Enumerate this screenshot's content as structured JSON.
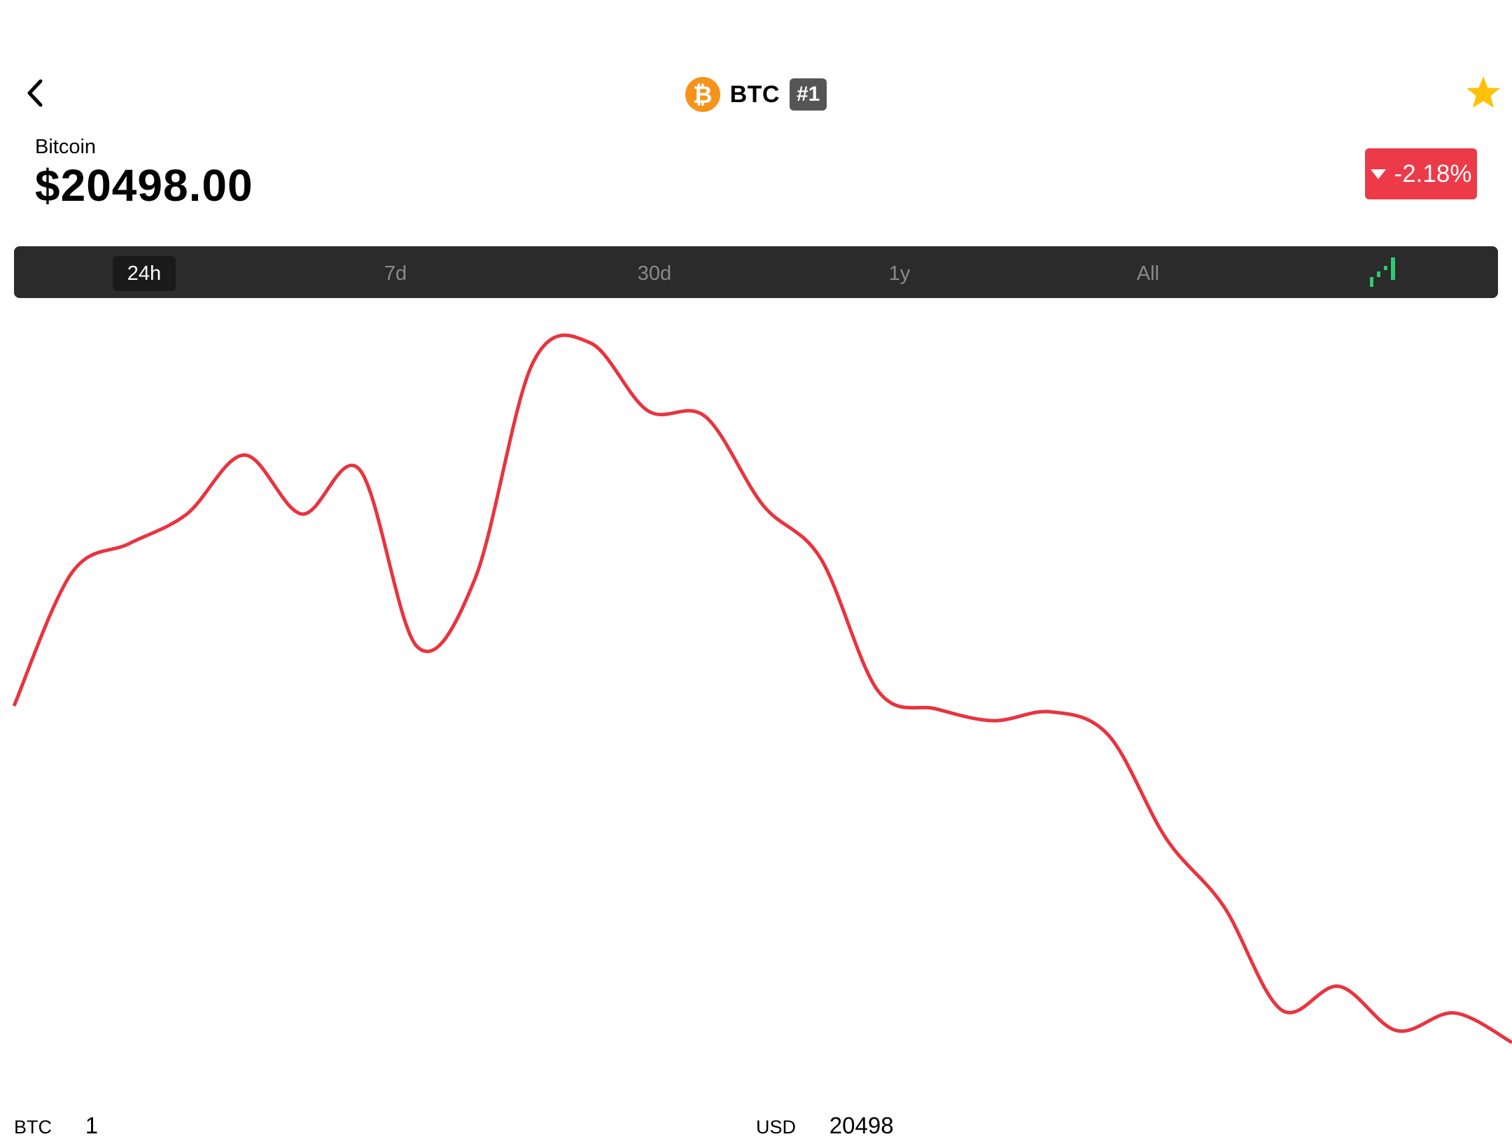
{
  "header": {
    "symbol": "BTC",
    "rank": "#1",
    "coin_logo_glyph": "₿",
    "icons": [
      "back-chevron-icon",
      "bitcoin-logo",
      "star-icon"
    ]
  },
  "coin": {
    "name": "Bitcoin",
    "price": "$20498.00",
    "change": "-2.18%",
    "change_color": "#EC3A48"
  },
  "tabs": [
    {
      "label": "24h",
      "active": true
    },
    {
      "label": "7d",
      "active": false
    },
    {
      "label": "30d",
      "active": false
    },
    {
      "label": "1y",
      "active": false
    },
    {
      "label": "All",
      "active": false
    }
  ],
  "chart_data": {
    "type": "line",
    "line_color": "#E8343F",
    "grid": false,
    "axes_visible": false,
    "values": [
      20800,
      21250,
      21350,
      21450,
      21650,
      21450,
      21600,
      21000,
      21230,
      21960,
      22030,
      21800,
      21780,
      21480,
      21300,
      20850,
      20790,
      20750,
      20780,
      20700,
      20350,
      20120,
      19770,
      19850,
      19700,
      19760,
      19660
    ]
  },
  "converter": {
    "from_label": "BTC",
    "from_value": "1",
    "to_label": "USD",
    "to_value": "20498"
  },
  "colors": {
    "accent_star": "#FFC107",
    "tab_bar_bg": "#2B2B2B",
    "chart_toggle_green": "#2ECC71",
    "coin_orange": "#F7931A"
  }
}
